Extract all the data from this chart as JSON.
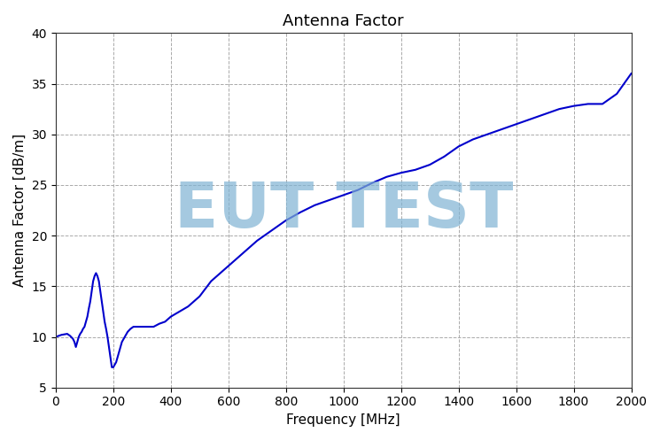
{
  "title": "Antenna Factor",
  "xlabel": "Frequency [MHz]",
  "ylabel": "Antenna Factor [dB/m]",
  "xlim": [
    0,
    2000
  ],
  "ylim": [
    5,
    40
  ],
  "xticks": [
    0,
    200,
    400,
    600,
    800,
    1000,
    1200,
    1400,
    1600,
    1800,
    2000
  ],
  "yticks": [
    5,
    10,
    15,
    20,
    25,
    30,
    35,
    40
  ],
  "line_color": "#0000cc",
  "watermark_text": "EUT TEST",
  "watermark_color": "#7fb3d3",
  "background_color": "#ffffff",
  "freq": [
    0,
    20,
    40,
    50,
    60,
    65,
    70,
    75,
    80,
    85,
    90,
    95,
    100,
    105,
    110,
    115,
    120,
    125,
    130,
    135,
    140,
    145,
    150,
    155,
    160,
    165,
    170,
    175,
    180,
    185,
    190,
    195,
    200,
    210,
    220,
    230,
    240,
    250,
    260,
    270,
    280,
    300,
    320,
    340,
    360,
    380,
    400,
    430,
    460,
    500,
    540,
    580,
    620,
    660,
    700,
    750,
    800,
    850,
    900,
    950,
    1000,
    1050,
    1100,
    1150,
    1200,
    1250,
    1300,
    1350,
    1400,
    1450,
    1500,
    1550,
    1600,
    1650,
    1700,
    1750,
    1800,
    1850,
    1900,
    1950,
    2000
  ],
  "af": [
    10.0,
    10.2,
    10.3,
    10.1,
    9.8,
    9.5,
    9.0,
    9.5,
    10.0,
    10.3,
    10.5,
    10.8,
    11.0,
    11.5,
    12.0,
    12.8,
    13.5,
    14.5,
    15.5,
    16.0,
    16.3,
    16.0,
    15.5,
    14.5,
    13.5,
    12.5,
    11.5,
    10.8,
    10.0,
    9.0,
    8.0,
    7.0,
    7.0,
    7.5,
    8.5,
    9.5,
    10.0,
    10.5,
    10.8,
    11.0,
    11.0,
    11.0,
    11.0,
    11.0,
    11.3,
    11.5,
    12.0,
    12.5,
    13.0,
    14.0,
    15.5,
    16.5,
    17.5,
    18.5,
    19.5,
    20.5,
    21.5,
    22.3,
    23.0,
    23.5,
    24.0,
    24.5,
    25.2,
    25.8,
    26.2,
    26.5,
    27.0,
    27.8,
    28.8,
    29.5,
    30.0,
    30.5,
    31.0,
    31.5,
    32.0,
    32.5,
    32.8,
    33.0,
    33.0,
    34.0,
    36.0
  ]
}
